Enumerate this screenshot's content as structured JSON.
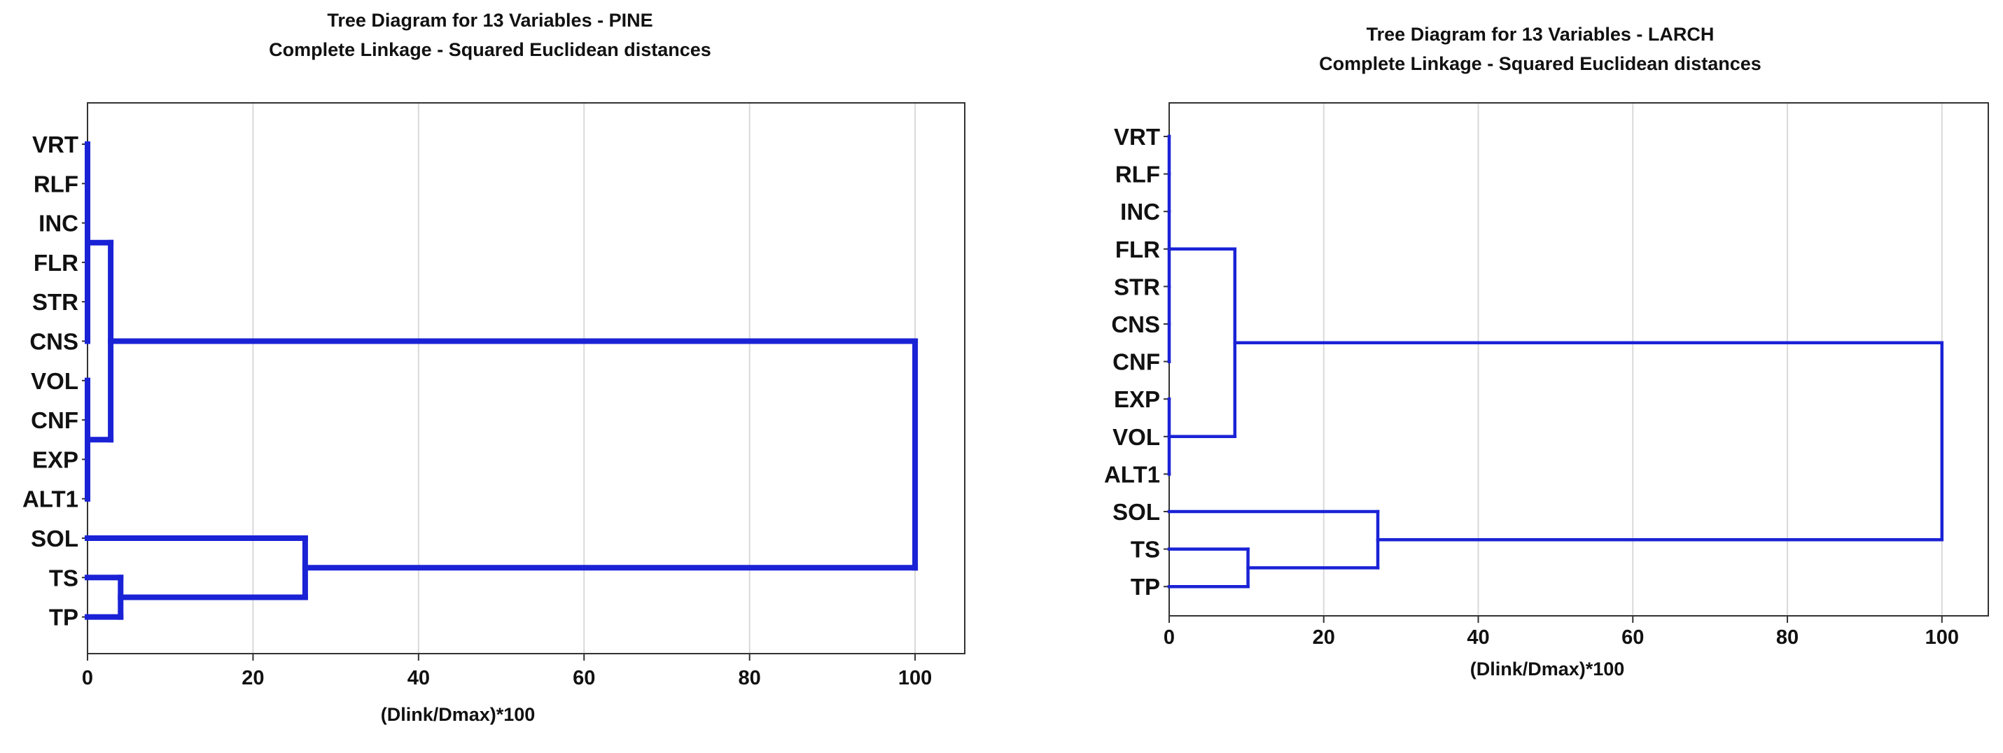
{
  "chart_data": [
    {
      "type": "dendrogram",
      "title": "Tree Diagram for 13 Variables - PINE",
      "subtitle": "Complete Linkage - Squared Euclidean distances",
      "xlabel": "(Dlink/Dmax)*100",
      "ylabel": "",
      "xlim": [
        0,
        106
      ],
      "xticks": [
        0,
        20,
        40,
        60,
        80,
        100
      ],
      "grid": true,
      "leaves": [
        "VRT",
        "RLF",
        "INC",
        "FLR",
        "STR",
        "CNS",
        "VOL",
        "CNF",
        "EXP",
        "ALT1",
        "SOL",
        "TS",
        "TP"
      ],
      "merges": [
        {
          "members": [
            "VRT",
            "RLF",
            "INC",
            "FLR",
            "STR",
            "CNS"
          ],
          "height": 0
        },
        {
          "members": [
            "VOL",
            "CNF",
            "EXP",
            "ALT1"
          ],
          "height": 0
        },
        {
          "members": [
            "VRT",
            "RLF",
            "INC",
            "FLR",
            "STR",
            "CNS",
            "VOL",
            "CNF",
            "EXP",
            "ALT1"
          ],
          "height": 2.8
        },
        {
          "members": [
            "TS",
            "TP"
          ],
          "height": 4.0
        },
        {
          "members": [
            "SOL",
            "TS",
            "TP"
          ],
          "height": 26.3
        },
        {
          "members": [
            "all"
          ],
          "height": 100
        }
      ]
    },
    {
      "type": "dendrogram",
      "title": "Tree Diagram for 13 Variables - LARCH",
      "subtitle": "Complete Linkage - Squared Euclidean distances",
      "xlabel": "(Dlink/Dmax)*100",
      "ylabel": "",
      "xlim": [
        0,
        106
      ],
      "xticks": [
        0,
        20,
        40,
        60,
        80,
        100
      ],
      "grid": true,
      "leaves": [
        "VRT",
        "RLF",
        "INC",
        "FLR",
        "STR",
        "CNS",
        "CNF",
        "EXP",
        "VOL",
        "ALT1",
        "SOL",
        "TS",
        "TP"
      ],
      "merges": [
        {
          "members": [
            "VRT",
            "RLF",
            "INC",
            "FLR",
            "STR",
            "CNS",
            "CNF"
          ],
          "height": 0
        },
        {
          "members": [
            "EXP",
            "VOL",
            "ALT1"
          ],
          "height": 0
        },
        {
          "members": [
            "VRT",
            "RLF",
            "INC",
            "FLR",
            "STR",
            "CNS",
            "CNF",
            "EXP",
            "VOL",
            "ALT1"
          ],
          "height": 8.5
        },
        {
          "members": [
            "TS",
            "TP"
          ],
          "height": 10.2
        },
        {
          "members": [
            "SOL",
            "TS",
            "TP"
          ],
          "height": 27.0
        },
        {
          "members": [
            "all"
          ],
          "height": 100
        }
      ]
    }
  ],
  "colors": {
    "link": "#1a22d6",
    "grid": "#d9d9d9",
    "frame": "#333333"
  }
}
